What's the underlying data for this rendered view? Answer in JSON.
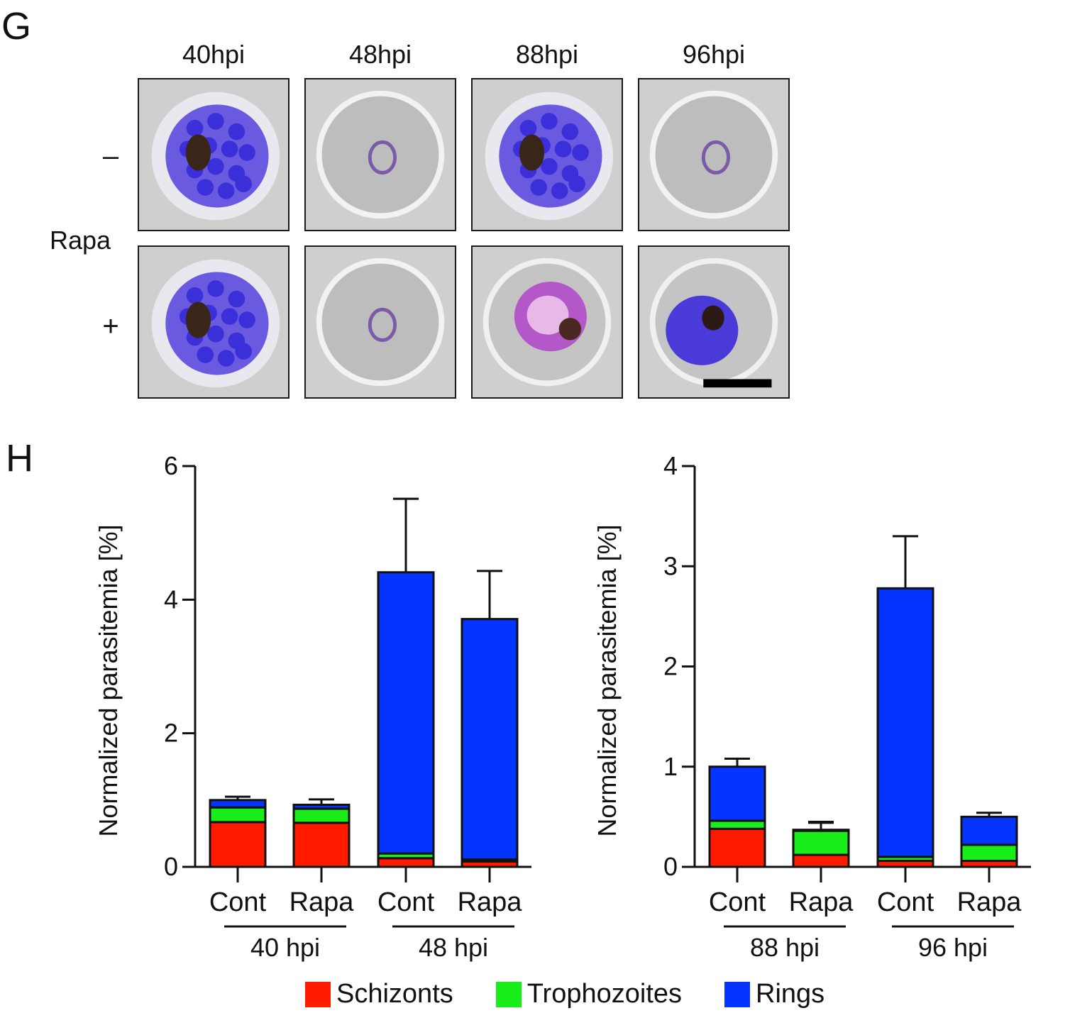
{
  "panel_g": {
    "letter": "G",
    "columns": [
      "40hpi",
      "48hpi",
      "88hpi",
      "96hpi"
    ],
    "row_label": "Rapa",
    "rows": [
      "–",
      "+"
    ],
    "cells": [
      {
        "kind": "schizont"
      },
      {
        "kind": "ring"
      },
      {
        "kind": "schizont"
      },
      {
        "kind": "ring"
      },
      {
        "kind": "schizont"
      },
      {
        "kind": "ring"
      },
      {
        "kind": "trophozoite"
      },
      {
        "kind": "trophozoite-dark"
      }
    ]
  },
  "panel_h": {
    "letter": "H"
  },
  "legend": [
    {
      "label": "Schizonts",
      "color": "#ff1a00"
    },
    {
      "label": "Trophozoites",
      "color": "#1aee1a"
    },
    {
      "label": "Rings",
      "color": "#0533ff"
    }
  ],
  "chart_data": [
    {
      "type": "bar",
      "stacked": true,
      "ylabel": "Normalized parasitemia [%]",
      "ylim": [
        0,
        6
      ],
      "yticks": [
        "0",
        "2",
        "4",
        "6"
      ],
      "categories": [
        "Cont",
        "Rapa",
        "Cont",
        "Rapa"
      ],
      "groups": [
        {
          "label": "40 hpi",
          "span": [
            0,
            1
          ]
        },
        {
          "label": "48 hpi",
          "span": [
            2,
            3
          ]
        }
      ],
      "series": [
        {
          "name": "Schizonts",
          "color": "#ff1a00",
          "values": [
            0.67,
            0.66,
            0.13,
            0.08
          ],
          "error": [
            0.05,
            0.25,
            0.03,
            0.02
          ]
        },
        {
          "name": "Trophozoites",
          "color": "#1aee1a",
          "values": [
            0.22,
            0.21,
            0.07,
            0.03
          ],
          "error": [
            0.03,
            0.03,
            0.1,
            0.04
          ]
        },
        {
          "name": "Rings",
          "color": "#0533ff",
          "values": [
            0.11,
            0.06,
            4.21,
            3.6
          ],
          "error": [
            0.05,
            0.08,
            1.1,
            0.72
          ]
        }
      ]
    },
    {
      "type": "bar",
      "stacked": true,
      "ylabel": "Normalized parasitemia [%]",
      "ylim": [
        0,
        4
      ],
      "yticks": [
        "0",
        "1",
        "2",
        "3",
        "4"
      ],
      "categories": [
        "Cont",
        "Rapa",
        "Cont",
        "Rapa"
      ],
      "groups": [
        {
          "label": "88 hpi",
          "span": [
            0,
            1
          ]
        },
        {
          "label": "96 hpi",
          "span": [
            2,
            3
          ]
        }
      ],
      "series": [
        {
          "name": "Schizonts",
          "color": "#ff1a00",
          "values": [
            0.38,
            0.12,
            0.06,
            0.06
          ],
          "error": [
            0.02,
            0.04,
            0.02,
            0.04
          ]
        },
        {
          "name": "Trophozoites",
          "color": "#1aee1a",
          "values": [
            0.08,
            0.24,
            0.04,
            0.16
          ],
          "error": [
            0.08,
            0.08,
            0.02,
            0.1
          ]
        },
        {
          "name": "Rings",
          "color": "#0533ff",
          "values": [
            0.54,
            0.01,
            2.68,
            0.28
          ],
          "error": [
            0.08,
            0.08,
            0.52,
            0.04
          ]
        }
      ]
    }
  ]
}
